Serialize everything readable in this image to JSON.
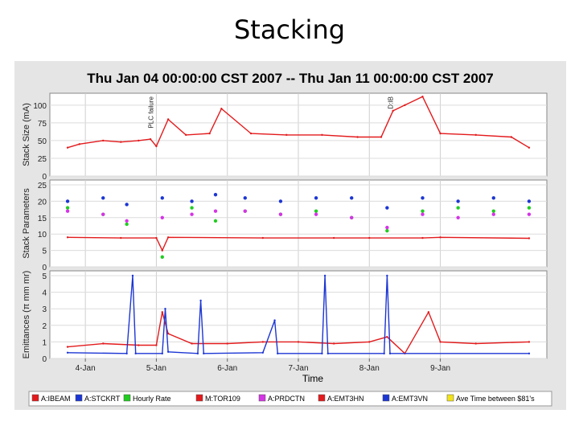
{
  "slide_title": "Stacking",
  "chart_data": {
    "type": "line",
    "header": "Thu Jan 04 00:00:00 CST 2007 -- Thu Jan 11 00:00:00 CST 2007",
    "xlabel": "Time",
    "x_ticks": [
      "4-Jan",
      "5-Jan",
      "6-Jan",
      "7-Jan",
      "8-Jan",
      "9-Jan"
    ],
    "x_range": [
      "2007-01-03T12:00",
      "2007-01-10T12:00"
    ],
    "grid": true,
    "legend_position": "bottom",
    "panels": [
      {
        "ylabel": "Stack Size (mA)",
        "ylim": [
          0,
          110
        ],
        "yticks": [
          "0",
          "25",
          "50",
          "75",
          "100"
        ],
        "annotations": [
          {
            "text": "PLC failure",
            "x": "2007-01-05T00:00"
          },
          {
            "text": "D:IB",
            "x": "2007-01-08T09:00"
          }
        ],
        "series": [
          {
            "name": "A:IBEAM",
            "color": "#e31a1c",
            "style": "line",
            "points": [
              [
                "2007-01-03T18:00",
                40
              ],
              [
                "2007-01-03T22:00",
                45
              ],
              [
                "2007-01-04T06:00",
                50
              ],
              [
                "2007-01-04T12:00",
                48
              ],
              [
                "2007-01-04T18:00",
                50
              ],
              [
                "2007-01-04T22:00",
                52
              ],
              [
                "2007-01-05T00:00",
                42
              ],
              [
                "2007-01-05T04:00",
                80
              ],
              [
                "2007-01-05T10:00",
                58
              ],
              [
                "2007-01-05T18:00",
                60
              ],
              [
                "2007-01-05T22:00",
                95
              ],
              [
                "2007-01-06T08:00",
                60
              ],
              [
                "2007-01-06T20:00",
                58
              ],
              [
                "2007-01-07T08:00",
                58
              ],
              [
                "2007-01-07T20:00",
                55
              ],
              [
                "2007-01-08T04:00",
                55
              ],
              [
                "2007-01-08T08:00",
                92
              ],
              [
                "2007-01-08T12:00",
                100
              ],
              [
                "2007-01-08T18:00",
                112
              ],
              [
                "2007-01-09T00:00",
                60
              ],
              [
                "2007-01-09T12:00",
                58
              ],
              [
                "2007-01-10T00:00",
                55
              ],
              [
                "2007-01-10T06:00",
                40
              ]
            ]
          }
        ]
      },
      {
        "ylabel": "Stack Parameters",
        "ylim": [
          0,
          25
        ],
        "yticks": [
          "0",
          "5",
          "10",
          "15",
          "20",
          "25"
        ],
        "series": [
          {
            "name": "A:STCKRT",
            "color": "#1c36d4",
            "style": "scatter",
            "points": [
              [
                "2007-01-03T18:00",
                20
              ],
              [
                "2007-01-04T06:00",
                21
              ],
              [
                "2007-01-04T14:00",
                19
              ],
              [
                "2007-01-05T02:00",
                21
              ],
              [
                "2007-01-05T12:00",
                20
              ],
              [
                "2007-01-05T20:00",
                22
              ],
              [
                "2007-01-06T06:00",
                21
              ],
              [
                "2007-01-06T18:00",
                20
              ],
              [
                "2007-01-07T06:00",
                21
              ],
              [
                "2007-01-07T18:00",
                21
              ],
              [
                "2007-01-08T06:00",
                18
              ],
              [
                "2007-01-08T18:00",
                21
              ],
              [
                "2007-01-09T06:00",
                20
              ],
              [
                "2007-01-09T18:00",
                21
              ],
              [
                "2007-01-10T06:00",
                20
              ]
            ]
          },
          {
            "name": "Hourly Rate",
            "color": "#22cc22",
            "style": "scatter",
            "points": [
              [
                "2007-01-03T18:00",
                18
              ],
              [
                "2007-01-04T06:00",
                16
              ],
              [
                "2007-01-04T14:00",
                13
              ],
              [
                "2007-01-05T02:00",
                3
              ],
              [
                "2007-01-05T12:00",
                18
              ],
              [
                "2007-01-05T20:00",
                14
              ],
              [
                "2007-01-06T06:00",
                17
              ],
              [
                "2007-01-06T18:00",
                16
              ],
              [
                "2007-01-07T06:00",
                17
              ],
              [
                "2007-01-07T18:00",
                15
              ],
              [
                "2007-01-08T06:00",
                11
              ],
              [
                "2007-01-08T18:00",
                17
              ],
              [
                "2007-01-09T06:00",
                18
              ],
              [
                "2007-01-09T18:00",
                17
              ],
              [
                "2007-01-10T06:00",
                18
              ]
            ]
          },
          {
            "name": "A:PRDCTN",
            "color": "#d534e6",
            "style": "scatter",
            "points": [
              [
                "2007-01-03T18:00",
                17
              ],
              [
                "2007-01-04T06:00",
                16
              ],
              [
                "2007-01-04T14:00",
                14
              ],
              [
                "2007-01-05T02:00",
                15
              ],
              [
                "2007-01-05T12:00",
                16
              ],
              [
                "2007-01-05T20:00",
                17
              ],
              [
                "2007-01-06T06:00",
                17
              ],
              [
                "2007-01-06T18:00",
                16
              ],
              [
                "2007-01-07T06:00",
                16
              ],
              [
                "2007-01-07T18:00",
                15
              ],
              [
                "2007-01-08T06:00",
                12
              ],
              [
                "2007-01-08T18:00",
                16
              ],
              [
                "2007-01-09T06:00",
                15
              ],
              [
                "2007-01-09T18:00",
                16
              ],
              [
                "2007-01-10T06:00",
                16
              ]
            ]
          },
          {
            "name": "A:EMT3HN",
            "color": "#e31a1c",
            "style": "line",
            "points": [
              [
                "2007-01-03T18:00",
                9
              ],
              [
                "2007-01-04T12:00",
                8.8
              ],
              [
                "2007-01-05T00:00",
                8.8
              ],
              [
                "2007-01-05T02:00",
                5
              ],
              [
                "2007-01-05T04:00",
                9
              ],
              [
                "2007-01-06T12:00",
                8.8
              ],
              [
                "2007-01-07T12:00",
                8.8
              ],
              [
                "2007-01-08T00:00",
                8.8
              ],
              [
                "2007-01-08T18:00",
                8.8
              ],
              [
                "2007-01-09T00:00",
                9
              ],
              [
                "2007-01-10T06:00",
                8.7
              ]
            ]
          }
        ]
      },
      {
        "ylabel": "Emittances (π mm mr)",
        "ylim": [
          0,
          5
        ],
        "yticks": [
          "0",
          "1",
          "2",
          "3",
          "4",
          "5"
        ],
        "series": [
          {
            "name": "M:TOR109",
            "color": "#e31a1c",
            "style": "line",
            "points": [
              [
                "2007-01-03T18:00",
                0.7
              ],
              [
                "2007-01-04T06:00",
                0.9
              ],
              [
                "2007-01-04T18:00",
                0.8
              ],
              [
                "2007-01-05T00:00",
                0.8
              ],
              [
                "2007-01-05T02:00",
                2.8
              ],
              [
                "2007-01-05T04:00",
                1.5
              ],
              [
                "2007-01-05T12:00",
                0.9
              ],
              [
                "2007-01-06T00:00",
                0.9
              ],
              [
                "2007-01-06T12:00",
                1.0
              ],
              [
                "2007-01-07T00:00",
                1.0
              ],
              [
                "2007-01-07T12:00",
                0.9
              ],
              [
                "2007-01-08T00:00",
                1.0
              ],
              [
                "2007-01-08T06:00",
                1.3
              ],
              [
                "2007-01-08T12:00",
                0.3
              ],
              [
                "2007-01-08T20:00",
                2.8
              ],
              [
                "2007-01-09T00:00",
                1.0
              ],
              [
                "2007-01-09T12:00",
                0.9
              ],
              [
                "2007-01-10T06:00",
                1.0
              ]
            ]
          },
          {
            "name": "A:EMT3VN",
            "color": "#1c36d4",
            "style": "line",
            "points": [
              [
                "2007-01-03T18:00",
                0.35
              ],
              [
                "2007-01-04T14:00",
                0.3
              ],
              [
                "2007-01-04T16:00",
                5
              ],
              [
                "2007-01-04T17:00",
                0.3
              ],
              [
                "2007-01-05T02:00",
                0.3
              ],
              [
                "2007-01-05T03:00",
                3
              ],
              [
                "2007-01-05T04:00",
                0.4
              ],
              [
                "2007-01-05T14:00",
                0.3
              ],
              [
                "2007-01-05T15:00",
                3.5
              ],
              [
                "2007-01-05T16:00",
                0.3
              ],
              [
                "2007-01-06T12:00",
                0.35
              ],
              [
                "2007-01-06T16:00",
                2.3
              ],
              [
                "2007-01-06T17:00",
                0.3
              ],
              [
                "2007-01-07T08:00",
                0.3
              ],
              [
                "2007-01-07T09:00",
                5
              ],
              [
                "2007-01-07T10:00",
                0.3
              ],
              [
                "2007-01-08T05:00",
                0.3
              ],
              [
                "2007-01-08T06:00",
                5
              ],
              [
                "2007-01-08T07:00",
                0.3
              ],
              [
                "2007-01-10T06:00",
                0.3
              ]
            ]
          }
        ]
      }
    ],
    "legend": [
      {
        "label": "A:IBEAM",
        "color": "#e31a1c"
      },
      {
        "label": "A:STCKRT",
        "color": "#1c36d4"
      },
      {
        "label": "Hourly Rate",
        "color": "#22cc22"
      },
      {
        "label": "M:TOR109",
        "color": "#e31a1c"
      },
      {
        "label": "A:PRDCTN",
        "color": "#d534e6"
      },
      {
        "label": "A:EMT3HN",
        "color": "#e31a1c"
      },
      {
        "label": "A:EMT3VN",
        "color": "#1c36d4"
      },
      {
        "label": "Ave Time between $81's",
        "color": "#f2e31a"
      }
    ]
  }
}
